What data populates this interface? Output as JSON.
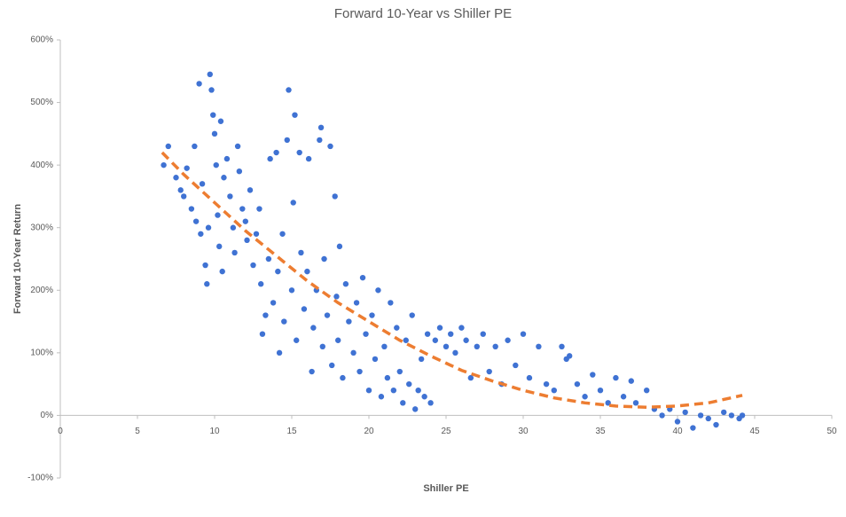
{
  "chart_data": {
    "type": "scatter",
    "title": "Forward 10-Year vs Shiller PE",
    "x_label": "Shiller PE",
    "y_label": "Forward 10-Year Return",
    "color": "#3f72d3",
    "x": [
      7,
      6.7,
      7.5,
      7.8,
      8,
      8.2,
      8.5,
      8.7,
      8.8,
      9,
      9.1,
      9.2,
      9.4,
      9.5,
      9.6,
      9.7,
      9.8,
      9.9,
      10,
      10.1,
      10.2,
      10.3,
      10.4,
      10.5,
      10.6,
      10.8,
      11,
      11.2,
      11.3,
      11.5,
      11.6,
      11.8,
      12,
      12.1,
      12.3,
      12.5,
      12.7,
      12.9,
      13,
      13.1,
      13.3,
      13.5,
      13.6,
      13.8,
      14,
      14.1,
      14.2,
      14.4,
      14.5,
      14.7,
      14.8,
      15,
      15.1,
      15.2,
      15.3,
      15.5,
      15.6,
      15.8,
      16,
      16.1,
      16.3,
      16.4,
      16.6,
      16.8,
      16.9,
      17,
      17.1,
      17.3,
      17.5,
      17.6,
      17.8,
      17.9,
      18,
      18.1,
      18.3,
      18.5,
      18.7,
      19,
      19.2,
      19.4,
      19.6,
      19.8,
      20,
      20.2,
      20.4,
      20.6,
      20.8,
      21,
      21.2,
      21.4,
      21.6,
      21.8,
      22,
      22.2,
      22.4,
      22.6,
      22.8,
      23,
      23.2,
      23.4,
      23.6,
      23.8,
      24,
      24.3,
      24.6,
      25,
      25.3,
      25.6,
      26,
      26.3,
      26.6,
      27,
      27.4,
      27.8,
      28.2,
      28.6,
      29,
      29.5,
      30,
      30.4,
      31,
      31.5,
      32,
      32.5,
      32.8,
      33,
      33.5,
      34,
      34.5,
      35,
      35.5,
      36,
      36.5,
      37,
      37.3,
      38,
      38.5,
      39,
      39.5,
      40,
      40.5,
      41,
      41.5,
      42,
      42.5,
      43,
      43.5,
      44,
      44.2
    ],
    "values": [
      430,
      400,
      380,
      360,
      350,
      395,
      330,
      430,
      310,
      530,
      290,
      370,
      240,
      210,
      300,
      545,
      520,
      480,
      450,
      400,
      320,
      270,
      470,
      230,
      380,
      410,
      350,
      300,
      260,
      430,
      390,
      330,
      310,
      280,
      360,
      240,
      290,
      330,
      210,
      130,
      160,
      250,
      410,
      180,
      420,
      230,
      100,
      290,
      150,
      440,
      520,
      200,
      340,
      480,
      120,
      420,
      260,
      170,
      230,
      410,
      70,
      140,
      200,
      440,
      460,
      110,
      250,
      160,
      430,
      80,
      350,
      190,
      120,
      270,
      60,
      210,
      150,
      100,
      180,
      70,
      220,
      130,
      40,
      160,
      90,
      200,
      30,
      110,
      60,
      180,
      40,
      140,
      70,
      20,
      120,
      50,
      160,
      10,
      40,
      90,
      30,
      130,
      20,
      120,
      140,
      110,
      130,
      100,
      140,
      120,
      60,
      110,
      130,
      70,
      110,
      50,
      120,
      80,
      130,
      60,
      110,
      50,
      40,
      110,
      90,
      95,
      50,
      30,
      65,
      40,
      20,
      60,
      30,
      55,
      20,
      40,
      10,
      0,
      10,
      -10,
      5,
      -20,
      0,
      -5,
      -15,
      5,
      0,
      -5,
      0
    ],
    "trendline": {
      "color": "#ed7d31",
      "x": [
        6.6,
        8,
        10,
        12,
        14,
        16,
        18,
        20,
        22,
        24,
        26,
        28,
        30,
        32,
        34,
        36,
        38,
        40,
        42,
        44.2
      ],
      "values": [
        420,
        385,
        340,
        295,
        255,
        215,
        180,
        150,
        120,
        95,
        72,
        55,
        40,
        28,
        20,
        15,
        13,
        15,
        20,
        32
      ]
    },
    "xlim": [
      0,
      50
    ],
    "xticks": [
      0,
      5,
      10,
      15,
      20,
      25,
      30,
      35,
      40,
      45,
      50
    ],
    "ylim": [
      -100,
      600
    ],
    "yticks": [
      {
        "value": -100,
        "label": "-100%"
      },
      {
        "value": 0,
        "label": "0%"
      },
      {
        "value": 100,
        "label": "100%"
      },
      {
        "value": 200,
        "label": "200%"
      },
      {
        "value": 300,
        "label": "300%"
      },
      {
        "value": 400,
        "label": "400%"
      },
      {
        "value": 500,
        "label": "500%"
      },
      {
        "value": 600,
        "label": "600%"
      }
    ]
  }
}
